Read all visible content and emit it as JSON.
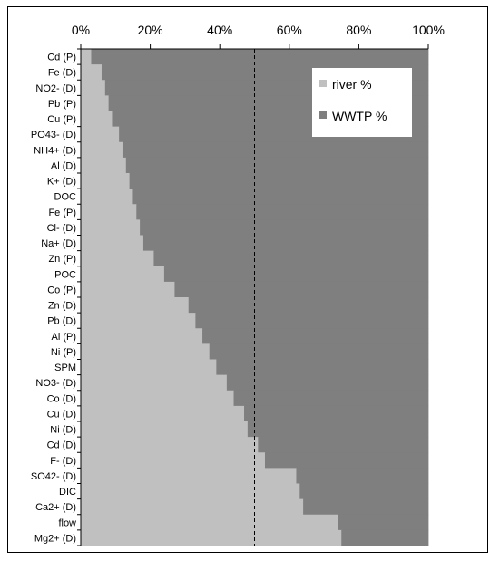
{
  "chart_data": {
    "type": "bar",
    "orientation": "horizontal",
    "stacked": true,
    "x_axis_position": "top",
    "xlim": [
      0,
      100
    ],
    "x_ticks": [
      "0%",
      "20%",
      "40%",
      "60%",
      "80%",
      "100%"
    ],
    "reference_line": {
      "x": 50,
      "style": "dashed"
    },
    "legend_placement": "top-right",
    "categories": [
      "Cd (P)",
      "Fe (D)",
      "NO2- (D)",
      "Pb (P)",
      "Cu (P)",
      "PO43- (D)",
      "NH4+ (D)",
      "Al (D)",
      "K+ (D)",
      "DOC",
      "Fe (P)",
      "Cl- (D)",
      "Na+ (D)",
      "Zn (P)",
      "POC",
      "Co (P)",
      "Zn (D)",
      "Pb (D)",
      "Al (P)",
      "Ni (P)",
      "SPM",
      "NO3- (D)",
      "Co (D)",
      "Cu (D)",
      "Ni (D)",
      "Cd (D)",
      "F- (D)",
      "SO42- (D)",
      "DIC",
      "Ca2+ (D)",
      "flow",
      "Mg2+ (D)"
    ],
    "series": [
      {
        "name": "river %",
        "color": "#c0c0c0",
        "values": [
          3,
          6,
          7,
          8,
          9,
          11,
          12,
          13,
          14,
          15,
          16,
          17,
          18,
          21,
          24,
          27,
          31,
          33,
          35,
          37,
          39,
          42,
          44,
          47,
          48,
          51,
          53,
          62,
          63,
          64,
          74,
          75
        ]
      },
      {
        "name": "WWTP %",
        "color": "#7f7f7f",
        "values": [
          97,
          94,
          93,
          92,
          91,
          89,
          88,
          87,
          86,
          85,
          84,
          83,
          82,
          79,
          76,
          73,
          69,
          67,
          65,
          63,
          61,
          58,
          56,
          53,
          52,
          49,
          47,
          38,
          37,
          36,
          26,
          25
        ]
      }
    ]
  }
}
